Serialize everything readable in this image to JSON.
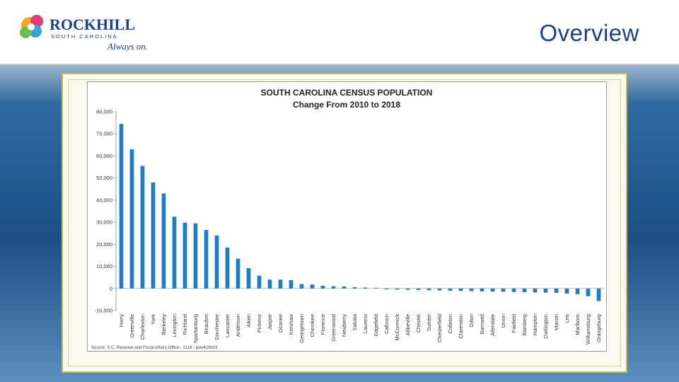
{
  "header": {
    "slide_title": "Overview",
    "logo": {
      "name": "ROCKHILL",
      "subtitle": "SOUTH CAROLINA",
      "tagline": "Always on."
    }
  },
  "colors": {
    "bar": "#1f7cc7",
    "title": "#1f3f87",
    "frame_border": "#c8b84a"
  },
  "chart_data": {
    "type": "bar",
    "title": "SOUTH CAROLINA CENSUS POPULATION",
    "subtitle": "Change From 2010 to 2018",
    "ylim": [
      -10000,
      80000
    ],
    "yticks": [
      "80,000",
      "70,000",
      "60,000",
      "50,000",
      "40,000",
      "30,000",
      "20,000",
      "10,000",
      "0",
      "-10,000"
    ],
    "ytick_values": [
      80000,
      70000,
      60000,
      50000,
      40000,
      30000,
      20000,
      10000,
      0,
      -10000
    ],
    "grid": false,
    "categories": [
      "Horry",
      "Greenville",
      "Charleston",
      "York",
      "Berkeley",
      "Lexington",
      "Richland",
      "Spartanburg",
      "Beaufort",
      "Dorchester",
      "Lancaster",
      "Anderson",
      "Aiken",
      "Pickens",
      "Jasper",
      "Oconee",
      "Kershaw",
      "Georgetown",
      "Cherokee",
      "Florence",
      "Greenwood",
      "Newberry",
      "Saluda",
      "Laurens",
      "Edgefield",
      "Calhoun",
      "McCormick",
      "Abbeville",
      "Chester",
      "Sumter",
      "Chesterfield",
      "Colleton",
      "Clarendon",
      "Dillon",
      "Barnwell",
      "Allendale",
      "Union",
      "Fairfield",
      "Bamberg",
      "Hampton",
      "Darlington",
      "Marion",
      "Lee",
      "Marlboro",
      "Williamsburg",
      "Orangeburg"
    ],
    "values": [
      74500,
      63000,
      55500,
      48000,
      43000,
      32500,
      29800,
      29500,
      26500,
      24000,
      18500,
      13500,
      9200,
      5800,
      4000,
      4000,
      3800,
      2000,
      1800,
      1200,
      1000,
      900,
      600,
      400,
      200,
      -400,
      -500,
      -600,
      -700,
      -800,
      -900,
      -1000,
      -1100,
      -1200,
      -1300,
      -1400,
      -1500,
      -1600,
      -1700,
      -1800,
      -1900,
      -2000,
      -2300,
      -2600,
      -3500,
      -5700
    ],
    "source": "Source: S.C. Revenue and Fiscal Affairs Office - 2118 - lpw/4/29/19"
  }
}
